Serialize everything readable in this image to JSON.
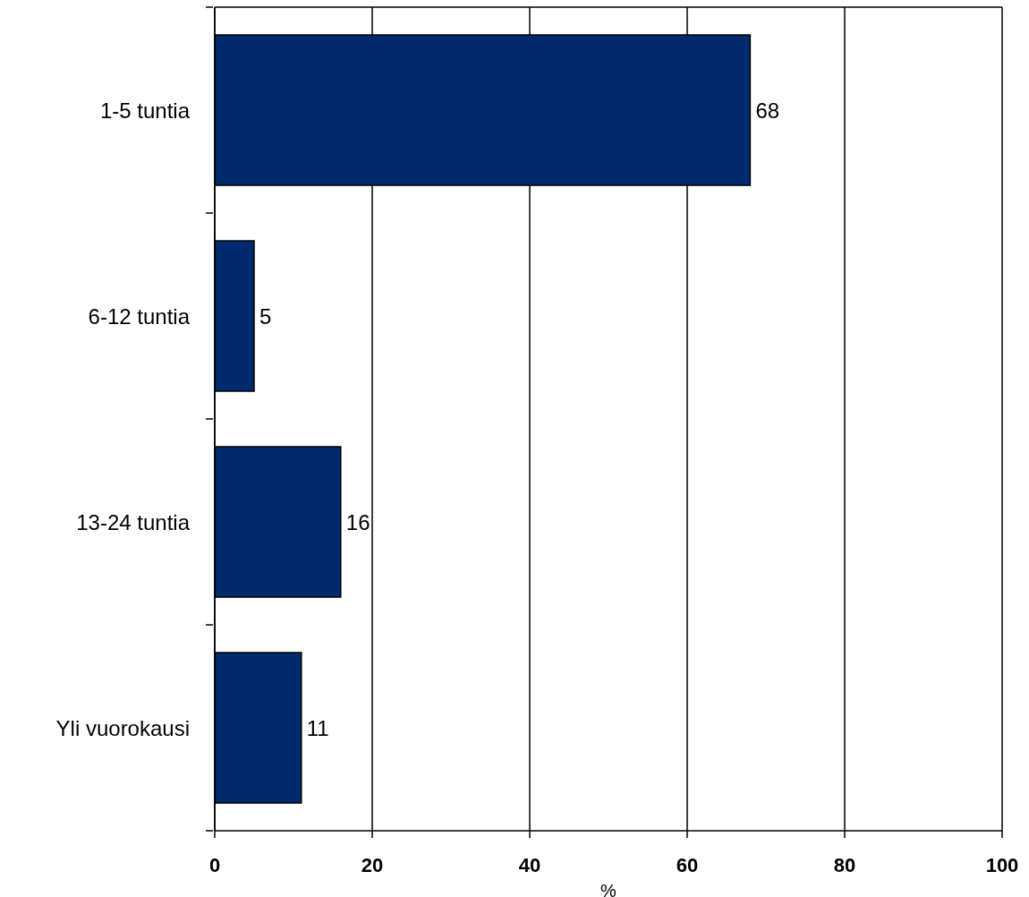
{
  "chart_data": {
    "type": "bar",
    "orientation": "horizontal",
    "categories": [
      "1-5 tuntia",
      "6-12 tuntia",
      "13-24 tuntia",
      "Yli vuorokausi"
    ],
    "values": [
      68,
      5,
      16,
      11
    ],
    "color": "#002a6e",
    "xlabel": "%",
    "xlim": [
      0,
      100
    ],
    "xticks": [
      0,
      20,
      40,
      60,
      80,
      100
    ],
    "grid": "x",
    "data_labels": true
  }
}
